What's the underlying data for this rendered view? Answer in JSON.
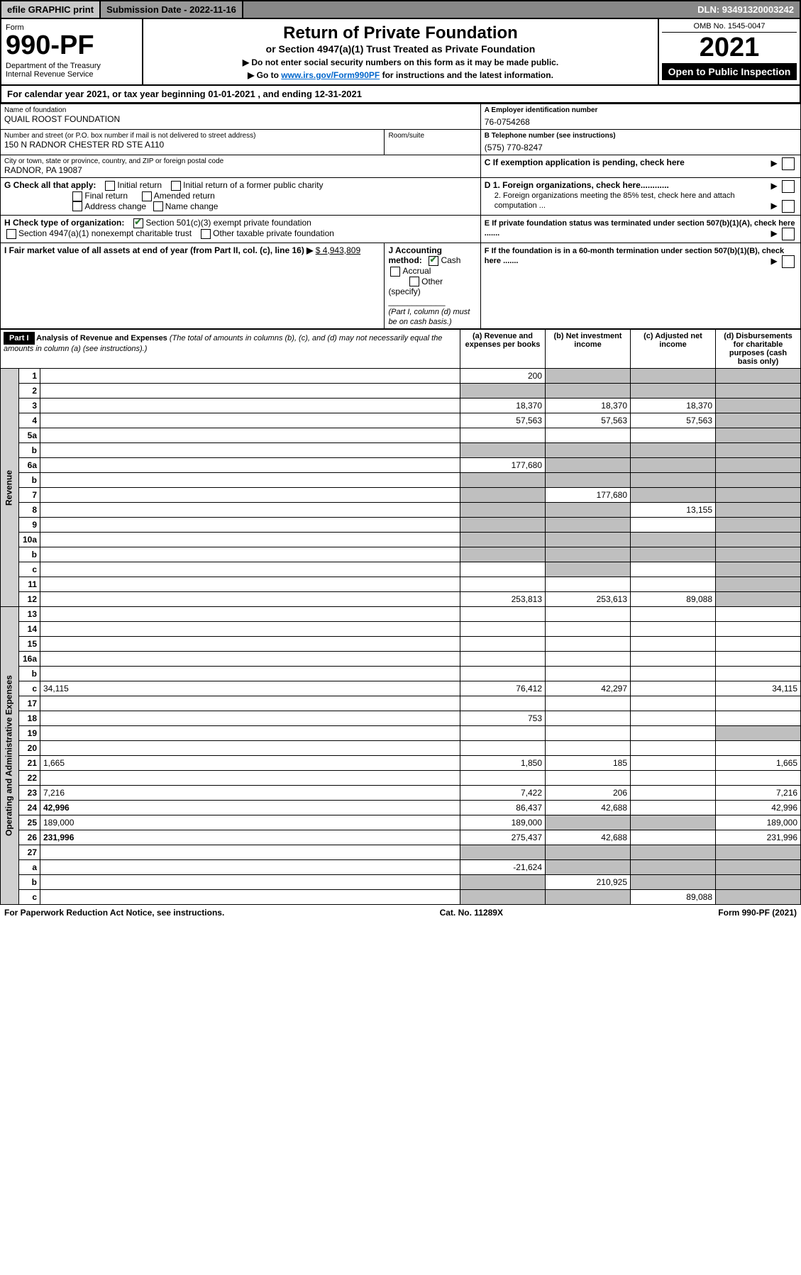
{
  "top": {
    "efile": "efile GRAPHIC print",
    "subdate": "Submission Date - 2022-11-16",
    "dln": "DLN: 93491320003242"
  },
  "header": {
    "form": "Form",
    "num": "990-PF",
    "dept": "Department of the Treasury\nInternal Revenue Service",
    "title": "Return of Private Foundation",
    "sub": "or Section 4947(a)(1) Trust Treated as Private Foundation",
    "note1": "▶ Do not enter social security numbers on this form as it may be made public.",
    "note2_pre": "▶ Go to ",
    "note2_link": "www.irs.gov/Form990PF",
    "note2_post": " for instructions and the latest information.",
    "omb": "OMB No. 1545-0047",
    "year": "2021",
    "open": "Open to Public Inspection"
  },
  "calbar": "For calendar year 2021, or tax year beginning 01-01-2021            , and ending 12-31-2021",
  "id": {
    "name_lbl": "Name of foundation",
    "name": "QUAIL ROOST FOUNDATION",
    "addr_lbl": "Number and street (or P.O. box number if mail is not delivered to street address)",
    "addr": "150 N RADNOR CHESTER RD STE A110",
    "room_lbl": "Room/suite",
    "city_lbl": "City or town, state or province, country, and ZIP or foreign postal code",
    "city": "RADNOR, PA  19087",
    "a_lbl": "A Employer identification number",
    "a_val": "76-0754268",
    "b_lbl": "B Telephone number (see instructions)",
    "b_val": "(575) 770-8247",
    "c_lbl": "C If exemption application is pending, check here",
    "g_lbl": "G Check all that apply:",
    "g_initial": "Initial return",
    "g_final": "Final return",
    "g_addr": "Address change",
    "g_initpub": "Initial return of a former public charity",
    "g_amend": "Amended return",
    "g_name": "Name change",
    "d1": "D 1. Foreign organizations, check here............",
    "d2": "2. Foreign organizations meeting the 85% test, check here and attach computation ...",
    "h_lbl": "H Check type of organization:",
    "h_501": "Section 501(c)(3) exempt private foundation",
    "h_4947": "Section 4947(a)(1) nonexempt charitable trust",
    "h_other": "Other taxable private foundation",
    "e_lbl": "E If private foundation status was terminated under section 507(b)(1)(A), check here .......",
    "i_lbl": "I Fair market value of all assets at end of year (from Part II, col. (c), line 16) ▶",
    "i_val": "$  4,943,809",
    "j_lbl": "J Accounting method:",
    "j_cash": "Cash",
    "j_accr": "Accrual",
    "j_other": "Other (specify)",
    "j_note": "(Part I, column (d) must be on cash basis.)",
    "f_lbl": "F If the foundation is in a 60-month termination under section 507(b)(1)(B), check here ......."
  },
  "part1": {
    "hdr": "Part I",
    "title": "Analysis of Revenue and Expenses",
    "title_note": " (The total of amounts in columns (b), (c), and (d) may not necessarily equal the amounts in column (a) (see instructions).)",
    "col_a": "(a)   Revenue and expenses per books",
    "col_b": "(b)   Net investment income",
    "col_c": "(c)   Adjusted net income",
    "col_d": "(d)   Disbursements for charitable purposes (cash basis only)",
    "rev_label": "Revenue",
    "exp_label": "Operating and Administrative Expenses"
  },
  "rows": [
    {
      "n": "1",
      "d": "",
      "a": "200",
      "b": "",
      "c": "",
      "grey_b": true,
      "grey_c": true,
      "grey_d": true
    },
    {
      "n": "2",
      "d": "",
      "a": "",
      "b": "",
      "c": "",
      "grey_a": true,
      "grey_b": true,
      "grey_c": true,
      "grey_d": true
    },
    {
      "n": "3",
      "d": "",
      "a": "18,370",
      "b": "18,370",
      "c": "18,370",
      "grey_d": true
    },
    {
      "n": "4",
      "d": "",
      "a": "57,563",
      "b": "57,563",
      "c": "57,563",
      "grey_d": true
    },
    {
      "n": "5a",
      "d": "",
      "a": "",
      "b": "",
      "c": "",
      "grey_d": true
    },
    {
      "n": "b",
      "d": "",
      "a": "",
      "b": "",
      "c": "",
      "grey_a": true,
      "grey_b": true,
      "grey_c": true,
      "grey_d": true
    },
    {
      "n": "6a",
      "d": "",
      "a": "177,680",
      "b": "",
      "c": "",
      "grey_b": true,
      "grey_c": true,
      "grey_d": true
    },
    {
      "n": "b",
      "d": "",
      "a": "",
      "b": "",
      "c": "",
      "grey_a": true,
      "grey_b": true,
      "grey_c": true,
      "grey_d": true
    },
    {
      "n": "7",
      "d": "",
      "a": "",
      "b": "177,680",
      "c": "",
      "grey_a": true,
      "grey_c": true,
      "grey_d": true
    },
    {
      "n": "8",
      "d": "",
      "a": "",
      "b": "",
      "c": "13,155",
      "grey_a": true,
      "grey_b": true,
      "grey_d": true
    },
    {
      "n": "9",
      "d": "",
      "a": "",
      "b": "",
      "c": "",
      "grey_a": true,
      "grey_b": true,
      "grey_d": true
    },
    {
      "n": "10a",
      "d": "",
      "a": "",
      "b": "",
      "c": "",
      "grey_a": true,
      "grey_b": true,
      "grey_c": true,
      "grey_d": true
    },
    {
      "n": "b",
      "d": "",
      "a": "",
      "b": "",
      "c": "",
      "grey_a": true,
      "grey_b": true,
      "grey_c": true,
      "grey_d": true
    },
    {
      "n": "c",
      "d": "",
      "a": "",
      "b": "",
      "c": "",
      "grey_b": true,
      "grey_d": true
    },
    {
      "n": "11",
      "d": "",
      "a": "",
      "b": "",
      "c": "",
      "grey_d": true
    },
    {
      "n": "12",
      "d": "",
      "a": "253,813",
      "b": "253,613",
      "c": "89,088",
      "bold": true,
      "grey_d": true
    }
  ],
  "exp_rows": [
    {
      "n": "13",
      "d": "",
      "a": "",
      "b": "",
      "c": ""
    },
    {
      "n": "14",
      "d": "",
      "a": "",
      "b": "",
      "c": ""
    },
    {
      "n": "15",
      "d": "",
      "a": "",
      "b": "",
      "c": ""
    },
    {
      "n": "16a",
      "d": "",
      "a": "",
      "b": "",
      "c": ""
    },
    {
      "n": "b",
      "d": "",
      "a": "",
      "b": "",
      "c": ""
    },
    {
      "n": "c",
      "d": "34,115",
      "a": "76,412",
      "b": "42,297",
      "c": ""
    },
    {
      "n": "17",
      "d": "",
      "a": "",
      "b": "",
      "c": ""
    },
    {
      "n": "18",
      "d": "",
      "a": "753",
      "b": "",
      "c": ""
    },
    {
      "n": "19",
      "d": "",
      "a": "",
      "b": "",
      "c": "",
      "grey_d": true
    },
    {
      "n": "20",
      "d": "",
      "a": "",
      "b": "",
      "c": ""
    },
    {
      "n": "21",
      "d": "1,665",
      "a": "1,850",
      "b": "185",
      "c": ""
    },
    {
      "n": "22",
      "d": "",
      "a": "",
      "b": "",
      "c": ""
    },
    {
      "n": "23",
      "d": "7,216",
      "a": "7,422",
      "b": "206",
      "c": ""
    },
    {
      "n": "24",
      "d": "42,996",
      "a": "86,437",
      "b": "42,688",
      "c": "",
      "bold": true
    },
    {
      "n": "25",
      "d": "189,000",
      "a": "189,000",
      "b": "",
      "c": "",
      "grey_b": true,
      "grey_c": true
    },
    {
      "n": "26",
      "d": "231,996",
      "a": "275,437",
      "b": "42,688",
      "c": "",
      "bold": true
    },
    {
      "n": "27",
      "d": "",
      "a": "",
      "b": "",
      "c": "",
      "grey_a": true,
      "grey_b": true,
      "grey_c": true,
      "grey_d": true
    },
    {
      "n": "a",
      "d": "",
      "a": "-21,624",
      "b": "",
      "c": "",
      "bold": true,
      "grey_b": true,
      "grey_c": true,
      "grey_d": true
    },
    {
      "n": "b",
      "d": "",
      "a": "",
      "b": "210,925",
      "c": "",
      "bold": true,
      "grey_a": true,
      "grey_c": true,
      "grey_d": true
    },
    {
      "n": "c",
      "d": "",
      "a": "",
      "b": "",
      "c": "89,088",
      "bold": true,
      "grey_a": true,
      "grey_b": true,
      "grey_d": true
    }
  ],
  "footer": {
    "left": "For Paperwork Reduction Act Notice, see instructions.",
    "mid": "Cat. No. 11289X",
    "right": "Form 990-PF (2021)"
  }
}
